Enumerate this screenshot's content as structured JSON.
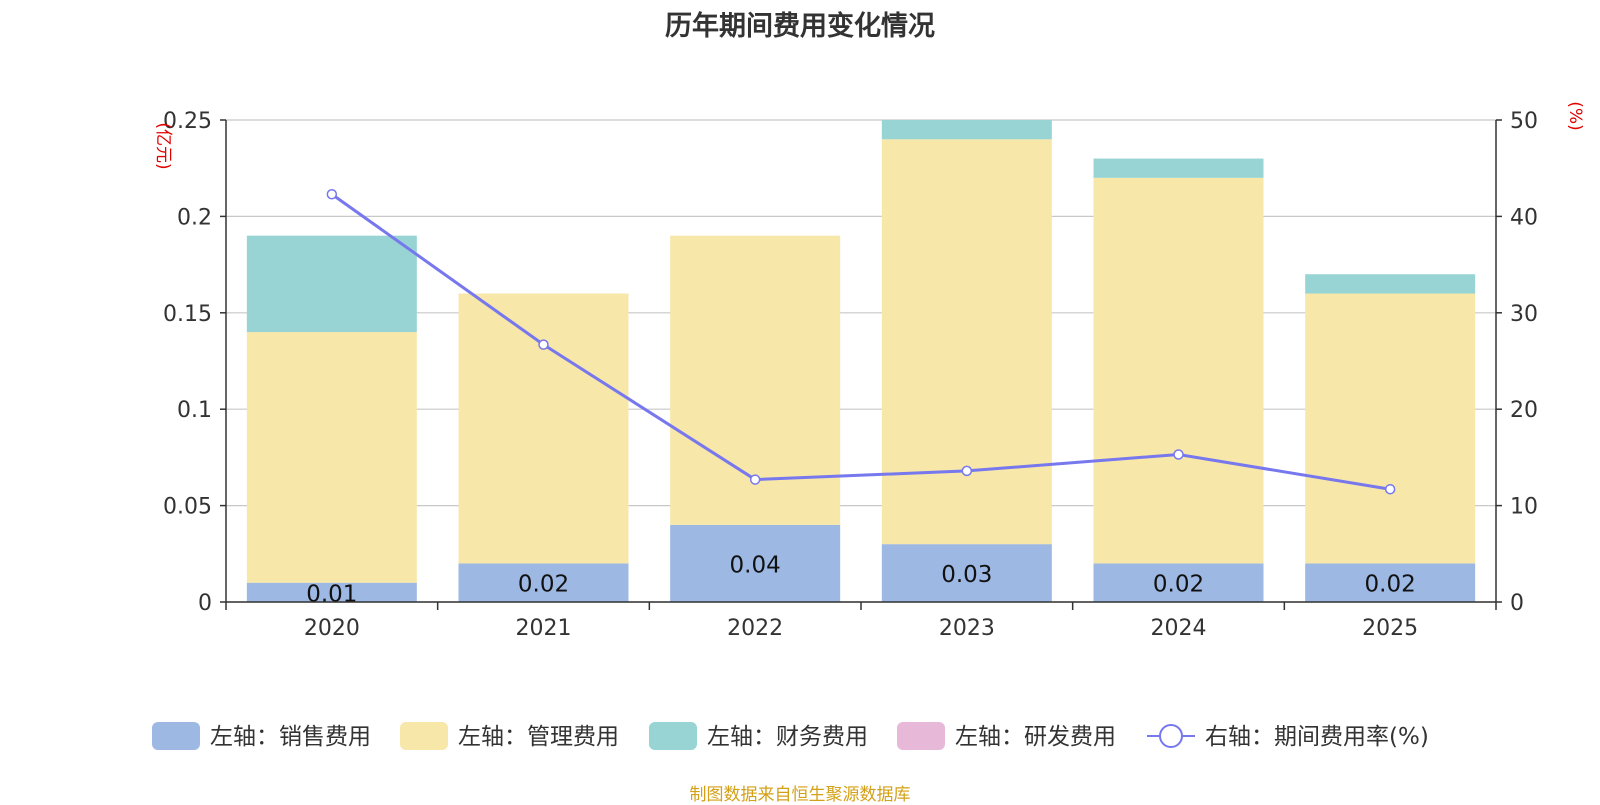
{
  "main": {
    "title": "历年期间费用变化情况",
    "source": "制图数据来自恒生聚源数据库"
  },
  "chart_data": {
    "type": "bar",
    "stacked": true,
    "title": "历年期间费用变化情况",
    "categories": [
      "2020",
      "2021",
      "2022",
      "2023",
      "2024",
      "2025"
    ],
    "left_axis": {
      "label": "(亿元)",
      "min": 0,
      "max": 0.25,
      "ticks": [
        "0",
        "0.05",
        "0.1",
        "0.15",
        "0.2",
        "0.25"
      ]
    },
    "right_axis": {
      "label": "(%)",
      "min": 0,
      "max": 50,
      "ticks": [
        "0",
        "10",
        "20",
        "30",
        "40",
        "50"
      ]
    },
    "series": [
      {
        "name": "左轴：销售费用",
        "axis": "left",
        "kind": "bar",
        "color": "#9db8e3",
        "values": [
          0.01,
          0.02,
          0.04,
          0.03,
          0.02,
          0.02
        ],
        "labels": [
          "0.01",
          "0.02",
          "0.04",
          "0.03",
          "0.02",
          "0.02"
        ]
      },
      {
        "name": "左轴：管理费用",
        "axis": "left",
        "kind": "bar",
        "color": "#f7e7a9",
        "values": [
          0.13,
          0.14,
          0.15,
          0.21,
          0.2,
          0.14
        ]
      },
      {
        "name": "左轴：财务费用",
        "axis": "left",
        "kind": "bar",
        "color": "#98d4d4",
        "values": [
          0.05,
          0.0,
          0.0,
          0.01,
          0.01,
          0.01
        ]
      },
      {
        "name": "左轴：研发费用",
        "axis": "left",
        "kind": "bar",
        "color": "#e7b8d8",
        "values": [
          0,
          0,
          0,
          0,
          0,
          0
        ]
      },
      {
        "name": "右轴：期间费用率(%)",
        "axis": "right",
        "kind": "line",
        "color": "#7777ee",
        "values": [
          42.3,
          26.7,
          12.7,
          13.6,
          15.3,
          11.7
        ]
      }
    ]
  }
}
